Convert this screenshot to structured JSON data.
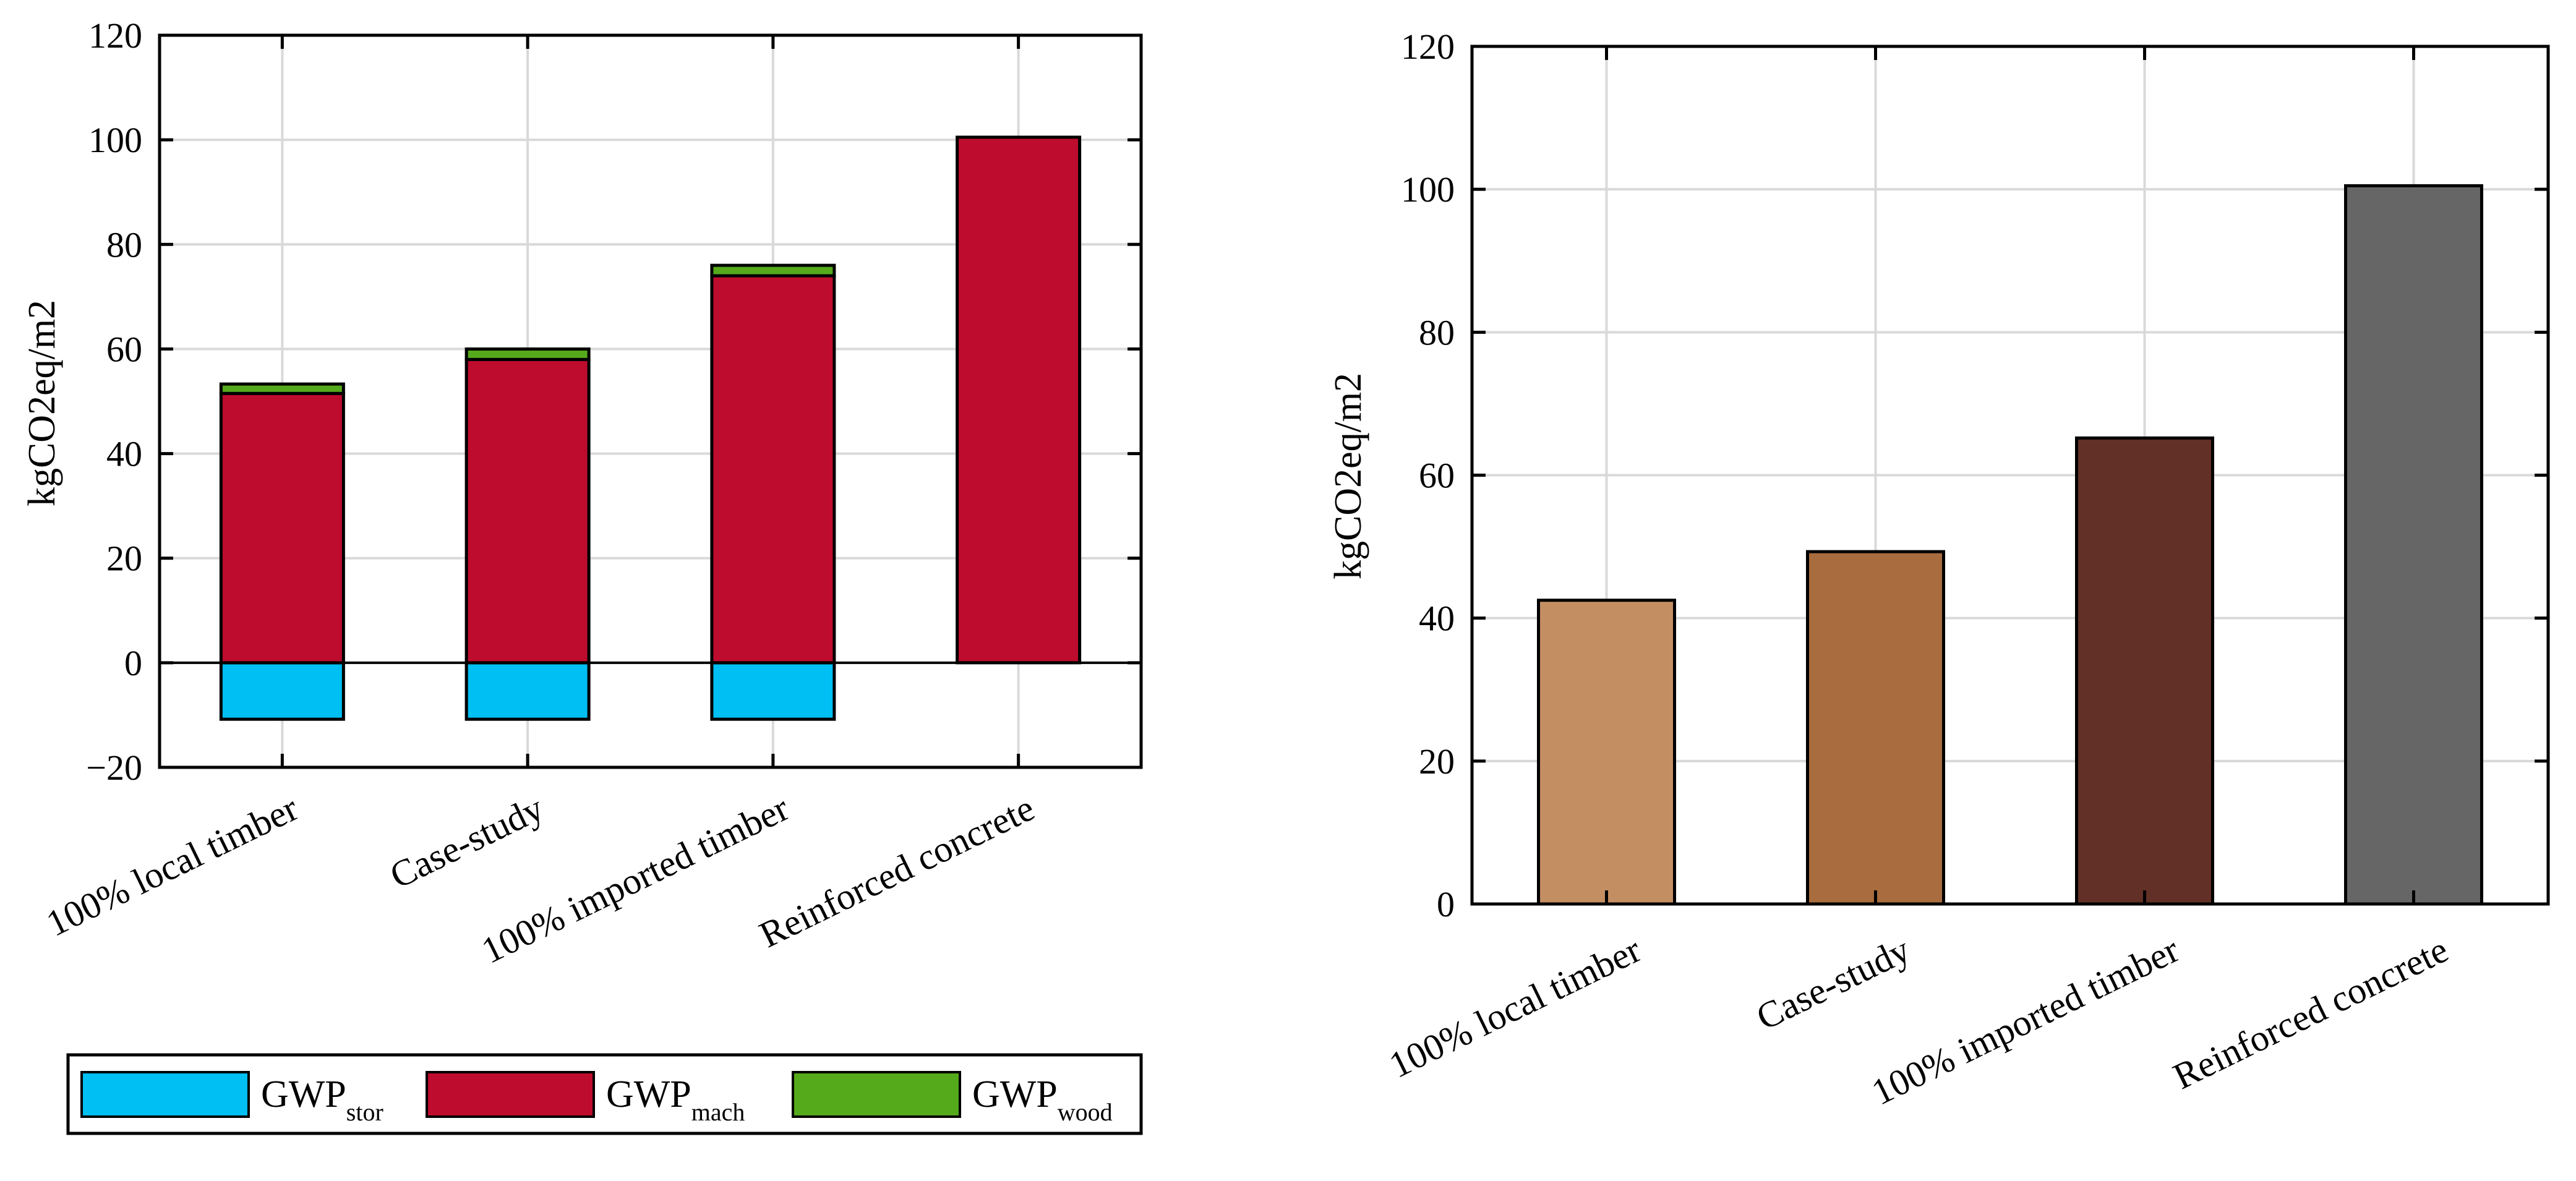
{
  "chart_data": [
    {
      "type": "bar",
      "stacked": true,
      "ylabel": "kgCO2eq/m2",
      "xlabel": "",
      "ylim": [
        -20,
        120
      ],
      "yticks": [
        -20,
        0,
        20,
        40,
        60,
        80,
        100,
        120
      ],
      "ytick_labels": [
        "−20",
        "0",
        "20",
        "40",
        "60",
        "80",
        "100",
        "120"
      ],
      "grid": true,
      "categories": [
        "100% local timber",
        "Case-study",
        "100% imported timber",
        "Reinforced concrete"
      ],
      "series": [
        {
          "name": "GWP_stor",
          "label_main": "GWP",
          "label_sub": "stor",
          "color": "#00bff3",
          "values": [
            -10.8,
            -10.8,
            -10.8,
            0
          ]
        },
        {
          "name": "GWP_mach",
          "label_main": "GWP",
          "label_sub": "mach",
          "color": "#be0c2e",
          "values": [
            51.5,
            58,
            74,
            100.5
          ]
        },
        {
          "name": "GWP_wood",
          "label_main": "GWP",
          "label_sub": "wood",
          "color": "#55aa1c",
          "values": [
            1.8,
            2,
            2,
            0
          ]
        }
      ],
      "legend_position": "bottom"
    },
    {
      "type": "bar",
      "ylabel": "kgCO2eq/m2",
      "xlabel": "",
      "ylim": [
        0,
        120
      ],
      "yticks": [
        0,
        20,
        40,
        60,
        80,
        100,
        120
      ],
      "ytick_labels": [
        "0",
        "20",
        "40",
        "60",
        "80",
        "100",
        "120"
      ],
      "grid": true,
      "categories": [
        "100% local timber",
        "Case-study",
        "100% imported timber",
        "Reinforced concrete"
      ],
      "values": [
        42.5,
        49.3,
        65.2,
        100.5
      ],
      "colors": [
        "#c48e63",
        "#a86c3e",
        "#623026",
        "#666666"
      ]
    }
  ]
}
